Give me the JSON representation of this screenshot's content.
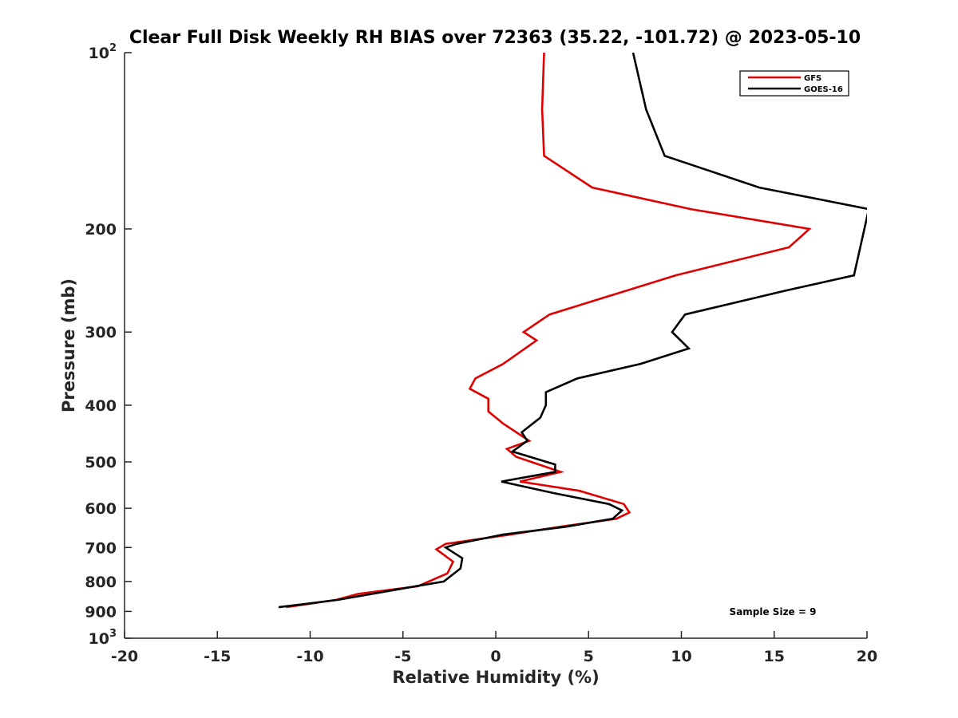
{
  "chart_data": {
    "type": "line",
    "title": "Clear Full Disk Weekly RH BIAS over 72363 (35.22, -101.72) @ 2023-05-10",
    "xlabel": "Relative Humidity (%)",
    "ylabel": "Pressure (mb)",
    "xlim": [
      -20,
      20
    ],
    "ylim": [
      100,
      1000
    ],
    "yscale": "log",
    "y_reversed": true,
    "grid": false,
    "x_ticks": [
      "-20",
      "-15",
      "-10",
      "-5",
      "0",
      "5",
      "10",
      "15",
      "20"
    ],
    "y_ticks": [
      {
        "value": 100,
        "label": "10",
        "sup": "2"
      },
      {
        "value": 200,
        "label": "200"
      },
      {
        "value": 300,
        "label": "300"
      },
      {
        "value": 400,
        "label": "400"
      },
      {
        "value": 500,
        "label": "500"
      },
      {
        "value": 600,
        "label": "600"
      },
      {
        "value": 700,
        "label": "700"
      },
      {
        "value": 800,
        "label": "800"
      },
      {
        "value": 900,
        "label": "900"
      },
      {
        "value": 1000,
        "label": "10",
        "sup": "3"
      }
    ],
    "legend_position": "top-right",
    "annotation": "Sample Size = 9",
    "series": [
      {
        "name": "GFS",
        "color": "#e00000",
        "points": [
          [
            2.6,
            100
          ],
          [
            2.5,
            125
          ],
          [
            2.6,
            150
          ],
          [
            5.2,
            170
          ],
          [
            10.5,
            185
          ],
          [
            16.9,
            200
          ],
          [
            15.8,
            215
          ],
          [
            9.7,
            240
          ],
          [
            2.9,
            280
          ],
          [
            1.5,
            300
          ],
          [
            2.2,
            310
          ],
          [
            0.4,
            340
          ],
          [
            -1.1,
            360
          ],
          [
            -1.4,
            375
          ],
          [
            -0.4,
            390
          ],
          [
            -0.4,
            410
          ],
          [
            0.4,
            430
          ],
          [
            1.8,
            460
          ],
          [
            0.6,
            475
          ],
          [
            1.1,
            490
          ],
          [
            3.5,
            520
          ],
          [
            1.3,
            540
          ],
          [
            4.5,
            560
          ],
          [
            6.9,
            590
          ],
          [
            7.2,
            610
          ],
          [
            6.5,
            625
          ],
          [
            3.5,
            645
          ],
          [
            0.8,
            665
          ],
          [
            -2.7,
            690
          ],
          [
            -3.2,
            705
          ],
          [
            -2.3,
            740
          ],
          [
            -2.6,
            775
          ],
          [
            -4.2,
            815
          ],
          [
            -7.4,
            840
          ],
          [
            -8.6,
            860
          ],
          [
            -11.3,
            885
          ]
        ]
      },
      {
        "name": "GOES-16",
        "color": "#000000",
        "points": [
          [
            7.4,
            100
          ],
          [
            8.1,
            125
          ],
          [
            9.1,
            150
          ],
          [
            14.2,
            170
          ],
          [
            20.1,
            185
          ],
          [
            19.3,
            240
          ],
          [
            15.6,
            255
          ],
          [
            10.2,
            280
          ],
          [
            9.5,
            300
          ],
          [
            10.4,
            320
          ],
          [
            7.8,
            340
          ],
          [
            4.4,
            360
          ],
          [
            2.7,
            380
          ],
          [
            2.7,
            400
          ],
          [
            2.4,
            420
          ],
          [
            1.4,
            445
          ],
          [
            1.7,
            460
          ],
          [
            0.9,
            480
          ],
          [
            3.2,
            505
          ],
          [
            3.2,
            520
          ],
          [
            0.3,
            540
          ],
          [
            3.1,
            565
          ],
          [
            6.1,
            590
          ],
          [
            6.8,
            605
          ],
          [
            6.3,
            625
          ],
          [
            3.8,
            645
          ],
          [
            0.4,
            665
          ],
          [
            -2.1,
            690
          ],
          [
            -2.7,
            700
          ],
          [
            -1.8,
            730
          ],
          [
            -1.9,
            760
          ],
          [
            -2.8,
            800
          ],
          [
            -4.3,
            815
          ],
          [
            -8.5,
            860
          ],
          [
            -11.7,
            885
          ]
        ]
      }
    ]
  }
}
